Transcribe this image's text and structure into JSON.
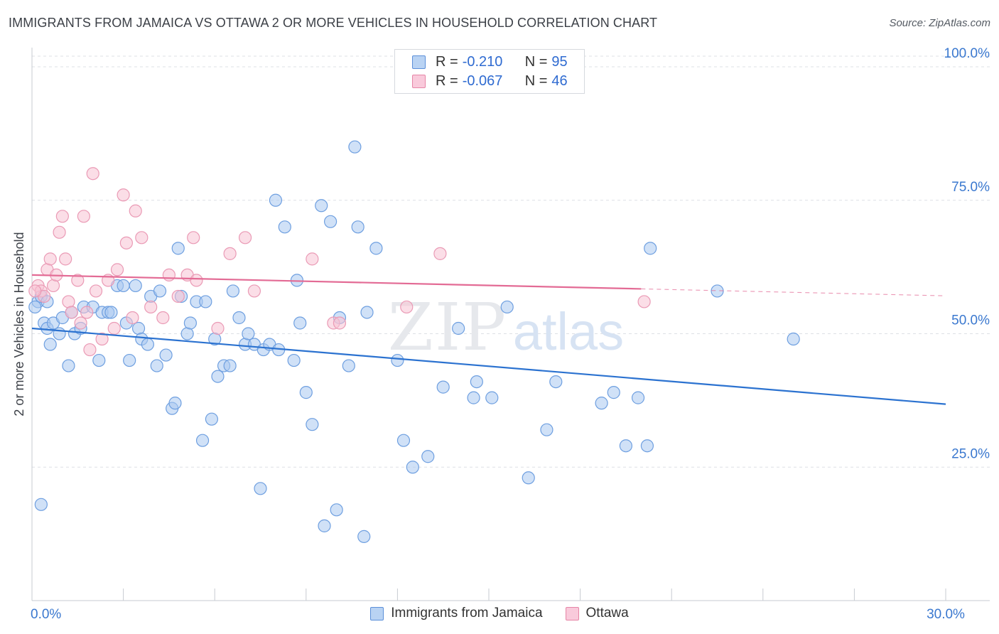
{
  "title": "IMMIGRANTS FROM JAMAICA VS OTTAWA 2 OR MORE VEHICLES IN HOUSEHOLD CORRELATION CHART",
  "source": "Source: ZipAtlas.com",
  "watermark": {
    "zip": "ZIP",
    "atlas": "atlas"
  },
  "legend": {
    "r_label": "R =",
    "n_label": "N =",
    "rows": [
      {
        "name": "Immigrants from Jamaica",
        "r": "-0.210",
        "n": "95",
        "fill": "#a9c8f0",
        "stroke": "#5b8fd9"
      },
      {
        "name": "Ottawa",
        "r": "-0.067",
        "n": "46",
        "fill": "#f8bcd0",
        "stroke": "#e685a6"
      }
    ]
  },
  "colors": {
    "blue_fill": "#a9c8f0",
    "blue_stroke": "#6e9fe0",
    "blue_line": "#2b72d0",
    "pink_fill": "#f8c2d4",
    "pink_stroke": "#ea9ab5",
    "pink_line": "#e36b95",
    "grid": "#dde0e5",
    "axis_text": "#3a78cf"
  },
  "chart_data": {
    "type": "scatter",
    "xlabel": "",
    "ylabel": "2 or more Vehicles in Household",
    "xlim": [
      0,
      30
    ],
    "ylim": [
      0,
      102
    ],
    "x_tick_labels": [
      {
        "value": 0,
        "label": "0.0%"
      },
      {
        "value": 30,
        "label": "30.0%"
      }
    ],
    "y_tick_labels": [
      {
        "value": 25,
        "label": "25.0%"
      },
      {
        "value": 50,
        "label": "50.0%"
      },
      {
        "value": 75,
        "label": "75.0%"
      },
      {
        "value": 100,
        "label": "100.0%"
      }
    ],
    "series": [
      {
        "name": "Immigrants from Jamaica",
        "color": "blue",
        "trend": {
          "x0": 0,
          "y0": 51,
          "x1": 30,
          "y1": 36.8,
          "solid_until": 30
        },
        "points": [
          [
            0.2,
            56
          ],
          [
            0.3,
            57
          ],
          [
            0.4,
            52
          ],
          [
            0.5,
            51
          ],
          [
            0.6,
            48
          ],
          [
            0.7,
            52
          ],
          [
            0.9,
            50
          ],
          [
            1.0,
            53
          ],
          [
            1.2,
            44
          ],
          [
            1.3,
            54
          ],
          [
            1.4,
            50
          ],
          [
            1.6,
            51
          ],
          [
            1.7,
            55
          ],
          [
            2.0,
            55
          ],
          [
            2.2,
            45
          ],
          [
            2.3,
            54
          ],
          [
            2.5,
            54
          ],
          [
            2.6,
            54
          ],
          [
            2.8,
            59
          ],
          [
            3.0,
            59
          ],
          [
            3.1,
            52
          ],
          [
            3.2,
            45
          ],
          [
            3.4,
            59
          ],
          [
            3.5,
            51
          ],
          [
            3.6,
            49
          ],
          [
            3.8,
            48
          ],
          [
            3.9,
            57
          ],
          [
            4.1,
            44
          ],
          [
            4.2,
            58
          ],
          [
            4.4,
            46
          ],
          [
            4.6,
            36
          ],
          [
            4.7,
            37
          ],
          [
            4.8,
            66
          ],
          [
            4.9,
            57
          ],
          [
            5.1,
            50
          ],
          [
            5.2,
            52
          ],
          [
            5.4,
            56
          ],
          [
            5.6,
            30
          ],
          [
            5.7,
            56
          ],
          [
            5.9,
            34
          ],
          [
            6.0,
            49
          ],
          [
            6.1,
            42
          ],
          [
            6.3,
            44
          ],
          [
            6.5,
            44
          ],
          [
            6.6,
            58
          ],
          [
            6.8,
            53
          ],
          [
            7.0,
            48
          ],
          [
            7.1,
            50
          ],
          [
            7.3,
            48
          ],
          [
            7.5,
            21
          ],
          [
            7.6,
            47
          ],
          [
            7.8,
            48
          ],
          [
            8.0,
            75
          ],
          [
            8.1,
            47
          ],
          [
            8.3,
            70
          ],
          [
            8.6,
            45
          ],
          [
            8.7,
            60
          ],
          [
            8.8,
            52
          ],
          [
            9.0,
            39
          ],
          [
            9.2,
            33
          ],
          [
            9.5,
            74
          ],
          [
            9.6,
            14
          ],
          [
            9.8,
            71
          ],
          [
            10.0,
            17
          ],
          [
            10.1,
            53
          ],
          [
            10.4,
            44
          ],
          [
            10.6,
            85
          ],
          [
            10.7,
            70
          ],
          [
            10.9,
            12
          ],
          [
            11.0,
            54
          ],
          [
            11.3,
            66
          ],
          [
            12.0,
            45
          ],
          [
            12.2,
            30
          ],
          [
            12.5,
            25
          ],
          [
            13.0,
            27
          ],
          [
            13.5,
            40
          ],
          [
            14.0,
            51
          ],
          [
            14.5,
            38
          ],
          [
            14.6,
            41
          ],
          [
            15.1,
            38
          ],
          [
            15.6,
            55
          ],
          [
            16.3,
            23
          ],
          [
            16.9,
            32
          ],
          [
            17.2,
            41
          ],
          [
            18.7,
            37
          ],
          [
            19.1,
            39
          ],
          [
            19.5,
            29
          ],
          [
            19.9,
            38
          ],
          [
            20.2,
            29
          ],
          [
            20.3,
            66
          ],
          [
            22.5,
            58
          ],
          [
            25.0,
            49
          ],
          [
            0.1,
            55
          ],
          [
            0.3,
            18
          ],
          [
            0.5,
            56
          ]
        ]
      },
      {
        "name": "Ottawa",
        "color": "pink",
        "trend": {
          "x0": 0,
          "y0": 61,
          "x1": 30,
          "y1": 57.1,
          "solid_until": 20
        },
        "points": [
          [
            0.2,
            59
          ],
          [
            0.3,
            58
          ],
          [
            0.4,
            57
          ],
          [
            0.5,
            62
          ],
          [
            0.6,
            64
          ],
          [
            0.7,
            59
          ],
          [
            0.8,
            61
          ],
          [
            0.9,
            69
          ],
          [
            1.0,
            72
          ],
          [
            1.1,
            64
          ],
          [
            1.2,
            56
          ],
          [
            1.3,
            54
          ],
          [
            1.5,
            60
          ],
          [
            1.6,
            52
          ],
          [
            1.7,
            72
          ],
          [
            1.8,
            54
          ],
          [
            1.9,
            47
          ],
          [
            2.0,
            80
          ],
          [
            2.1,
            58
          ],
          [
            2.3,
            49
          ],
          [
            2.5,
            60
          ],
          [
            2.7,
            51
          ],
          [
            2.8,
            62
          ],
          [
            3.0,
            76
          ],
          [
            3.1,
            67
          ],
          [
            3.3,
            53
          ],
          [
            3.4,
            73
          ],
          [
            3.6,
            68
          ],
          [
            3.9,
            55
          ],
          [
            4.3,
            53
          ],
          [
            4.5,
            61
          ],
          [
            4.8,
            57
          ],
          [
            5.1,
            61
          ],
          [
            5.3,
            68
          ],
          [
            5.4,
            60
          ],
          [
            6.1,
            51
          ],
          [
            6.5,
            65
          ],
          [
            7.0,
            68
          ],
          [
            7.3,
            58
          ],
          [
            9.2,
            64
          ],
          [
            9.9,
            52
          ],
          [
            10.1,
            52
          ],
          [
            12.3,
            55
          ],
          [
            13.4,
            65
          ],
          [
            20.1,
            56
          ],
          [
            0.1,
            58
          ]
        ]
      }
    ]
  }
}
